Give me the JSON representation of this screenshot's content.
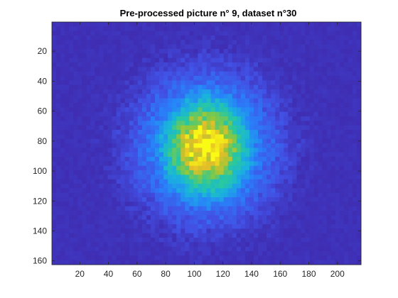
{
  "chart_data": {
    "type": "heatmap",
    "title": "Pre-processed picture n° 9, dataset n°30",
    "xlabel": "",
    "ylabel": "",
    "xlim": [
      0.5,
      216.5
    ],
    "ylim": [
      0.5,
      162.5
    ],
    "y_reversed": true,
    "x_ticks": [
      20,
      40,
      60,
      80,
      100,
      120,
      140,
      160,
      180,
      200
    ],
    "y_ticks": [
      20,
      40,
      60,
      80,
      100,
      120,
      140,
      160
    ],
    "x_tick_labels": [
      "20",
      "40",
      "60",
      "80",
      "100",
      "120",
      "140",
      "160",
      "180",
      "200"
    ],
    "y_tick_labels": [
      "20",
      "40",
      "60",
      "80",
      "100",
      "120",
      "140",
      "160"
    ],
    "colormap": "parula",
    "blob": {
      "center_x": 107,
      "center_y": 83,
      "core_radius_x": 24,
      "core_radius_y": 26,
      "outer_radius": 52,
      "peak_intensity": 1.0,
      "background_intensity": 0.04
    },
    "grid": false,
    "legend": "none"
  },
  "colors": {
    "background_low": "#3e26a8",
    "mid_cyan": "#2fbecb",
    "mid_green": "#73c53a",
    "peak_yellow": "#f9fb14",
    "axis": "#262626"
  }
}
